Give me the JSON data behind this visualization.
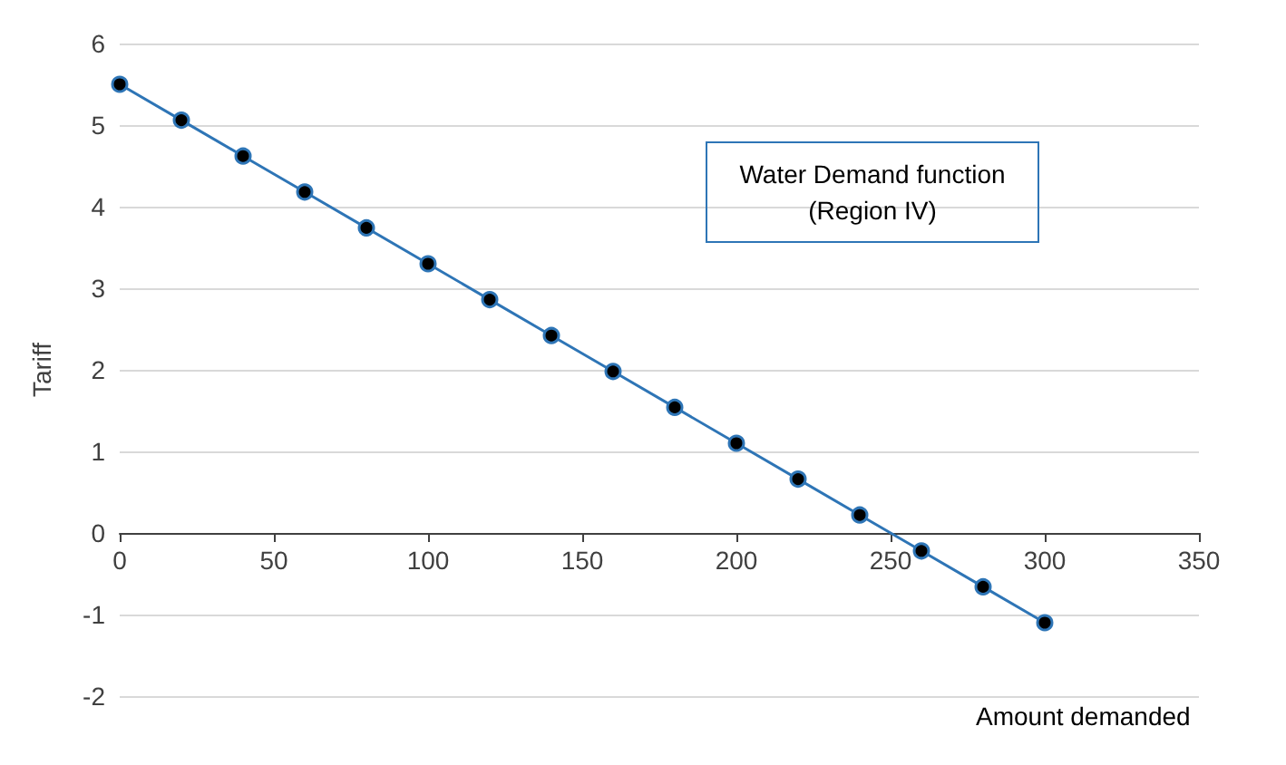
{
  "chart_data": {
    "type": "line",
    "title": "Water Demand function\n(Region IV)",
    "xlabel": "Amount demanded",
    "ylabel": "Tariff",
    "x": [
      0,
      20,
      40,
      60,
      80,
      100,
      120,
      140,
      160,
      180,
      200,
      220,
      240,
      260,
      280,
      300
    ],
    "series": [
      {
        "color": "#2e75b6",
        "values": [
          5.5,
          5.06,
          4.62,
          4.18,
          3.74,
          3.3,
          2.86,
          2.42,
          1.98,
          1.54,
          1.1,
          0.66,
          0.22,
          -0.22,
          -0.66,
          -1.1
        ]
      }
    ],
    "xlim": [
      0,
      350
    ],
    "xticks": [
      0,
      50,
      100,
      150,
      200,
      250,
      300,
      350
    ],
    "ylim": [
      -2,
      6
    ],
    "yticks": [
      -2,
      -1,
      0,
      1,
      2,
      3,
      4,
      5,
      6
    ],
    "grid": "y",
    "marker": "circle",
    "line_style": "solid"
  }
}
